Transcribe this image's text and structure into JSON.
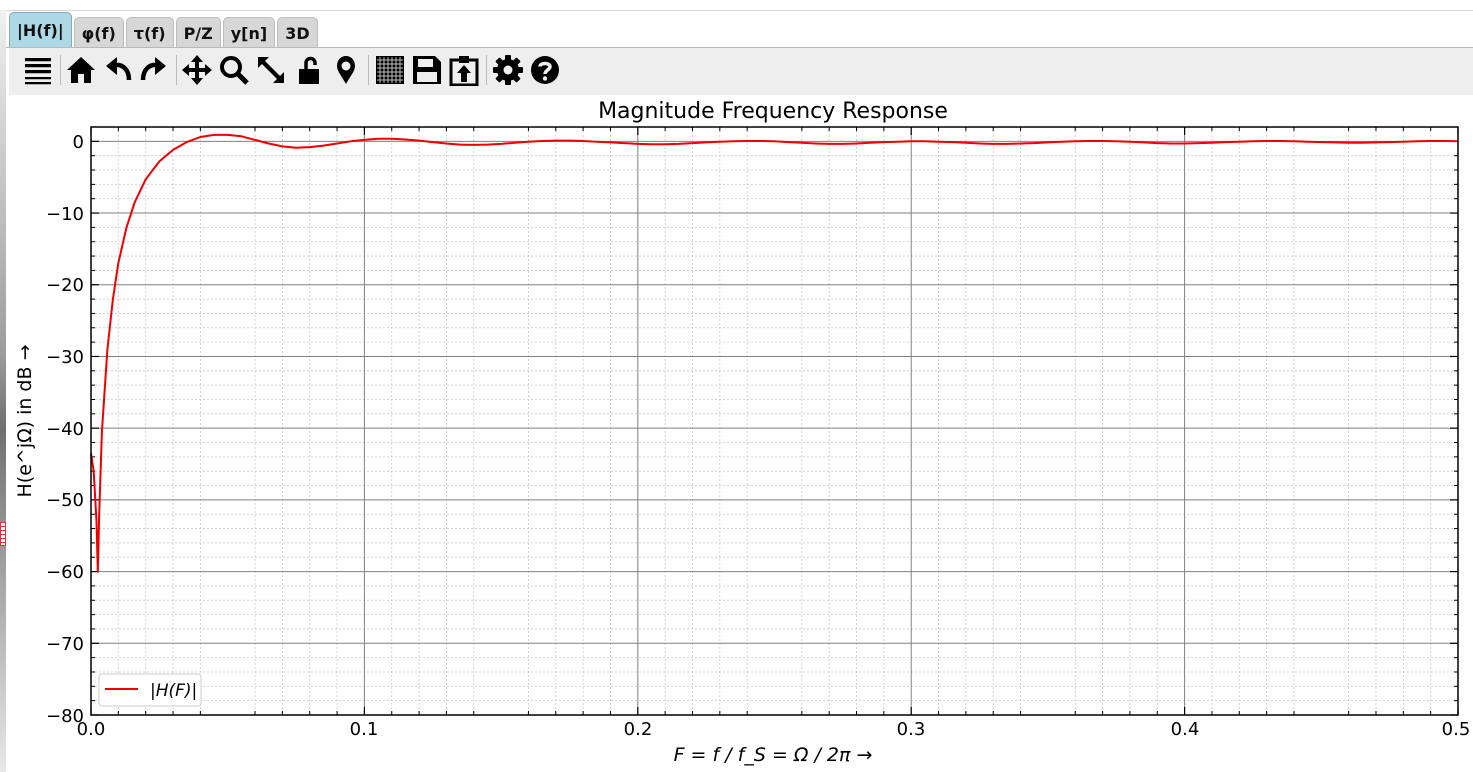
{
  "tabs": [
    {
      "label": "|H(f)|",
      "active": true
    },
    {
      "label": "φ(f)",
      "active": false
    },
    {
      "label": "τ(f)",
      "active": false
    },
    {
      "label": "P/Z",
      "active": false
    },
    {
      "label": "y[n]",
      "active": false
    },
    {
      "label": "3D",
      "active": false
    }
  ],
  "toolbar": {
    "icons": [
      "menu-icon",
      "home-icon",
      "undo-icon",
      "redo-icon",
      "pan-icon",
      "zoom-icon",
      "autoscale-icon",
      "lock-icon",
      "marker-icon",
      "grid-icon",
      "save-icon",
      "clipboard-icon",
      "settings-icon",
      "help-icon"
    ]
  },
  "colors": {
    "trace": "#ee0000",
    "active_tab": "#add8e6",
    "toolbar_bg": "#eeeeee"
  },
  "chart_data": {
    "type": "line",
    "title": "Magnitude Frequency Response",
    "xlabel": "F = f / f_S = Ω / 2π →",
    "ylabel": "H(e^jΩ) in dB →",
    "xlim": [
      0.0,
      0.5
    ],
    "ylim": [
      -80,
      2
    ],
    "xticks": [
      "0.0",
      "0.1",
      "0.2",
      "0.3",
      "0.4",
      "0.5"
    ],
    "yticks": [
      "0",
      "−10",
      "−20",
      "−30",
      "−40",
      "−50",
      "−60",
      "−70",
      "−80"
    ],
    "grid": "major and minor",
    "legend": {
      "position": "bottom-left",
      "entries": [
        "|H(F)|"
      ]
    },
    "series": [
      {
        "name": "|H(F)|",
        "color": "#ee0000",
        "x": [
          0.0,
          0.001,
          0.002,
          0.0025,
          0.003,
          0.004,
          0.006,
          0.008,
          0.01,
          0.013,
          0.016,
          0.02,
          0.025,
          0.03,
          0.035,
          0.04,
          0.045,
          0.05,
          0.055,
          0.06,
          0.065,
          0.07,
          0.075,
          0.08,
          0.085,
          0.09,
          0.095,
          0.1,
          0.105,
          0.11,
          0.115,
          0.12,
          0.125,
          0.13,
          0.135,
          0.14,
          0.145,
          0.15,
          0.155,
          0.16,
          0.165,
          0.17,
          0.175,
          0.18,
          0.185,
          0.19,
          0.195,
          0.2,
          0.205,
          0.21,
          0.215,
          0.22,
          0.225,
          0.23,
          0.235,
          0.24,
          0.245,
          0.25,
          0.255,
          0.26,
          0.265,
          0.27,
          0.275,
          0.28,
          0.285,
          0.29,
          0.295,
          0.3,
          0.305,
          0.31,
          0.315,
          0.32,
          0.325,
          0.33,
          0.335,
          0.34,
          0.345,
          0.35,
          0.355,
          0.36,
          0.365,
          0.37,
          0.375,
          0.38,
          0.385,
          0.39,
          0.395,
          0.4,
          0.405,
          0.41,
          0.415,
          0.42,
          0.425,
          0.43,
          0.435,
          0.44,
          0.445,
          0.45,
          0.455,
          0.46,
          0.465,
          0.47,
          0.475,
          0.48,
          0.485,
          0.49,
          0.495,
          0.5
        ],
        "y": [
          -43.5,
          -46.0,
          -53.0,
          -60.0,
          -52.0,
          -40.5,
          -29.0,
          -22.0,
          -17.0,
          -12.0,
          -8.5,
          -5.3,
          -2.8,
          -1.2,
          -0.1,
          0.6,
          0.9,
          0.9,
          0.7,
          0.2,
          -0.3,
          -0.7,
          -0.9,
          -0.8,
          -0.6,
          -0.3,
          0.0,
          0.2,
          0.35,
          0.35,
          0.25,
          0.1,
          -0.1,
          -0.3,
          -0.45,
          -0.5,
          -0.45,
          -0.35,
          -0.2,
          -0.05,
          0.05,
          0.1,
          0.1,
          0.05,
          -0.05,
          -0.15,
          -0.25,
          -0.35,
          -0.4,
          -0.4,
          -0.35,
          -0.25,
          -0.15,
          -0.05,
          0.0,
          0.05,
          0.05,
          0.0,
          -0.1,
          -0.2,
          -0.3,
          -0.35,
          -0.35,
          -0.3,
          -0.2,
          -0.1,
          -0.05,
          0.0,
          0.0,
          -0.05,
          -0.1,
          -0.2,
          -0.3,
          -0.35,
          -0.35,
          -0.3,
          -0.25,
          -0.15,
          -0.05,
          0.0,
          0.05,
          0.05,
          0.0,
          -0.05,
          -0.15,
          -0.25,
          -0.3,
          -0.3,
          -0.25,
          -0.2,
          -0.1,
          -0.05,
          0.0,
          0.05,
          0.05,
          0.0,
          -0.05,
          -0.1,
          -0.15,
          -0.2,
          -0.2,
          -0.15,
          -0.1,
          -0.05,
          0.0,
          0.05,
          0.05,
          0.0
        ]
      }
    ]
  }
}
